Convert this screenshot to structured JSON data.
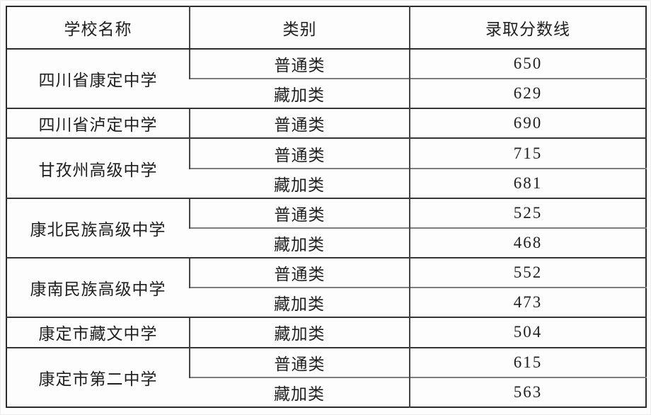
{
  "table": {
    "headers": {
      "school": "学校名称",
      "category": "类别",
      "score": "录取分数线"
    },
    "groups": [
      {
        "school": "四川省康定中学",
        "rows": [
          {
            "category": "普通类",
            "score": "650"
          },
          {
            "category": "藏加类",
            "score": "629"
          }
        ]
      },
      {
        "school": "四川省泸定中学",
        "rows": [
          {
            "category": "普通类",
            "score": "690"
          }
        ]
      },
      {
        "school": "甘孜州高级中学",
        "rows": [
          {
            "category": "普通类",
            "score": "715"
          },
          {
            "category": "藏加类",
            "score": "681"
          }
        ]
      },
      {
        "school": "康北民族高级中学",
        "rows": [
          {
            "category": "普通类",
            "score": "525"
          },
          {
            "category": "藏加类",
            "score": "468"
          }
        ]
      },
      {
        "school": "康南民族高级中学",
        "rows": [
          {
            "category": "普通类",
            "score": "552"
          },
          {
            "category": "藏加类",
            "score": "473"
          }
        ]
      },
      {
        "school": "康定市藏文中学",
        "rows": [
          {
            "category": "藏加类",
            "score": "504"
          }
        ]
      },
      {
        "school": "康定市第二中学",
        "rows": [
          {
            "category": "普通类",
            "score": "615"
          },
          {
            "category": "藏加类",
            "score": "563"
          }
        ]
      }
    ],
    "colors": {
      "border_dark": "#2c2c2c",
      "border_gray": "#7d7d7d",
      "text": "#1f1f1f",
      "background": "#fdfdfd"
    }
  }
}
